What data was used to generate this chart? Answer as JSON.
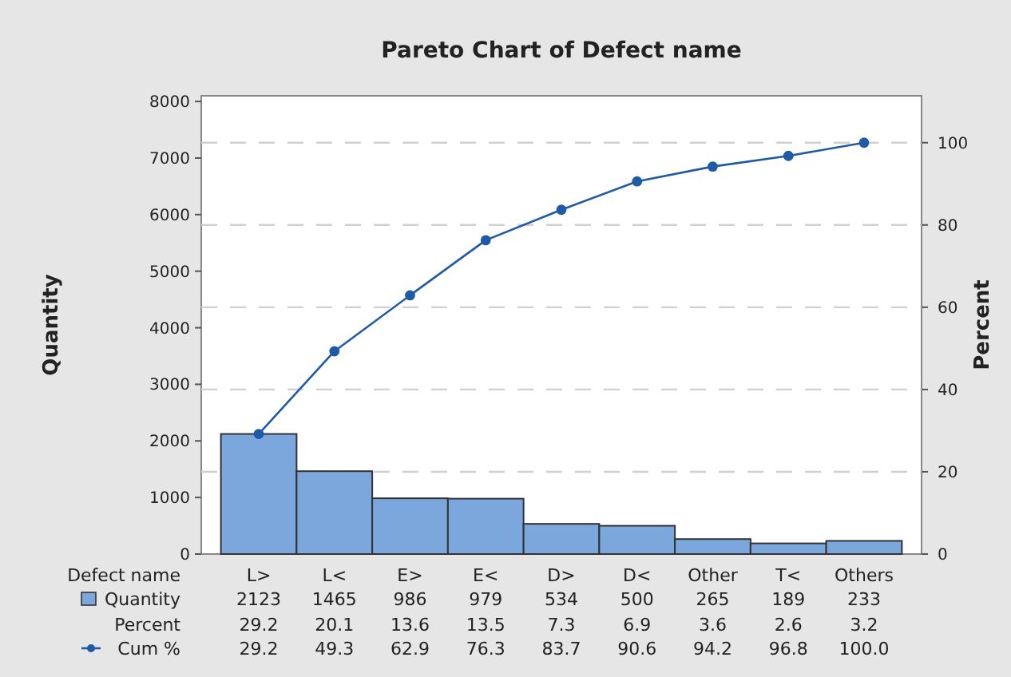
{
  "chart_data": {
    "type": "bar",
    "title": "Pareto Chart of Defect name",
    "xlabel": "Defect name",
    "ylabel": "Quantity",
    "y2label": "Percent",
    "categories": [
      "L>",
      "L<",
      "E>",
      "E<",
      "D>",
      "D<",
      "Other",
      "T<",
      "Others"
    ],
    "series": [
      {
        "name": "Quantity",
        "color": "#7ba7dc",
        "values": [
          2123,
          1465,
          986,
          979,
          534,
          500,
          265,
          189,
          233
        ],
        "value_labels": [
          "2123",
          "1465",
          "986",
          "979",
          "534",
          "500",
          "265",
          "189",
          "233"
        ]
      },
      {
        "name": "Cum %",
        "type": "line",
        "axis": "y2",
        "color": "#1f5aa6",
        "values": [
          29.2,
          49.3,
          62.9,
          76.3,
          83.7,
          90.6,
          94.2,
          96.8,
          100.0
        ],
        "value_labels": [
          "29.2",
          "49.3",
          "62.9",
          "76.3",
          "83.7",
          "90.6",
          "94.2",
          "96.8",
          "100.0"
        ]
      }
    ],
    "annotations": [
      "Percent",
      "29.2",
      "20.1",
      "13.6",
      "13.5",
      "7.3",
      "6.9",
      "3.6",
      "2.6",
      "3.2"
    ],
    "ylim": [
      0,
      8100
    ],
    "yticks": [
      0,
      1000,
      2000,
      3000,
      4000,
      5000,
      6000,
      7000,
      8000
    ],
    "y2lim": [
      0,
      111.4
    ],
    "y2ticks": [
      0,
      20,
      40,
      60,
      80,
      100
    ],
    "grid": "y",
    "legend": "bottom left",
    "marker": "circle",
    "line_style": "solid"
  }
}
